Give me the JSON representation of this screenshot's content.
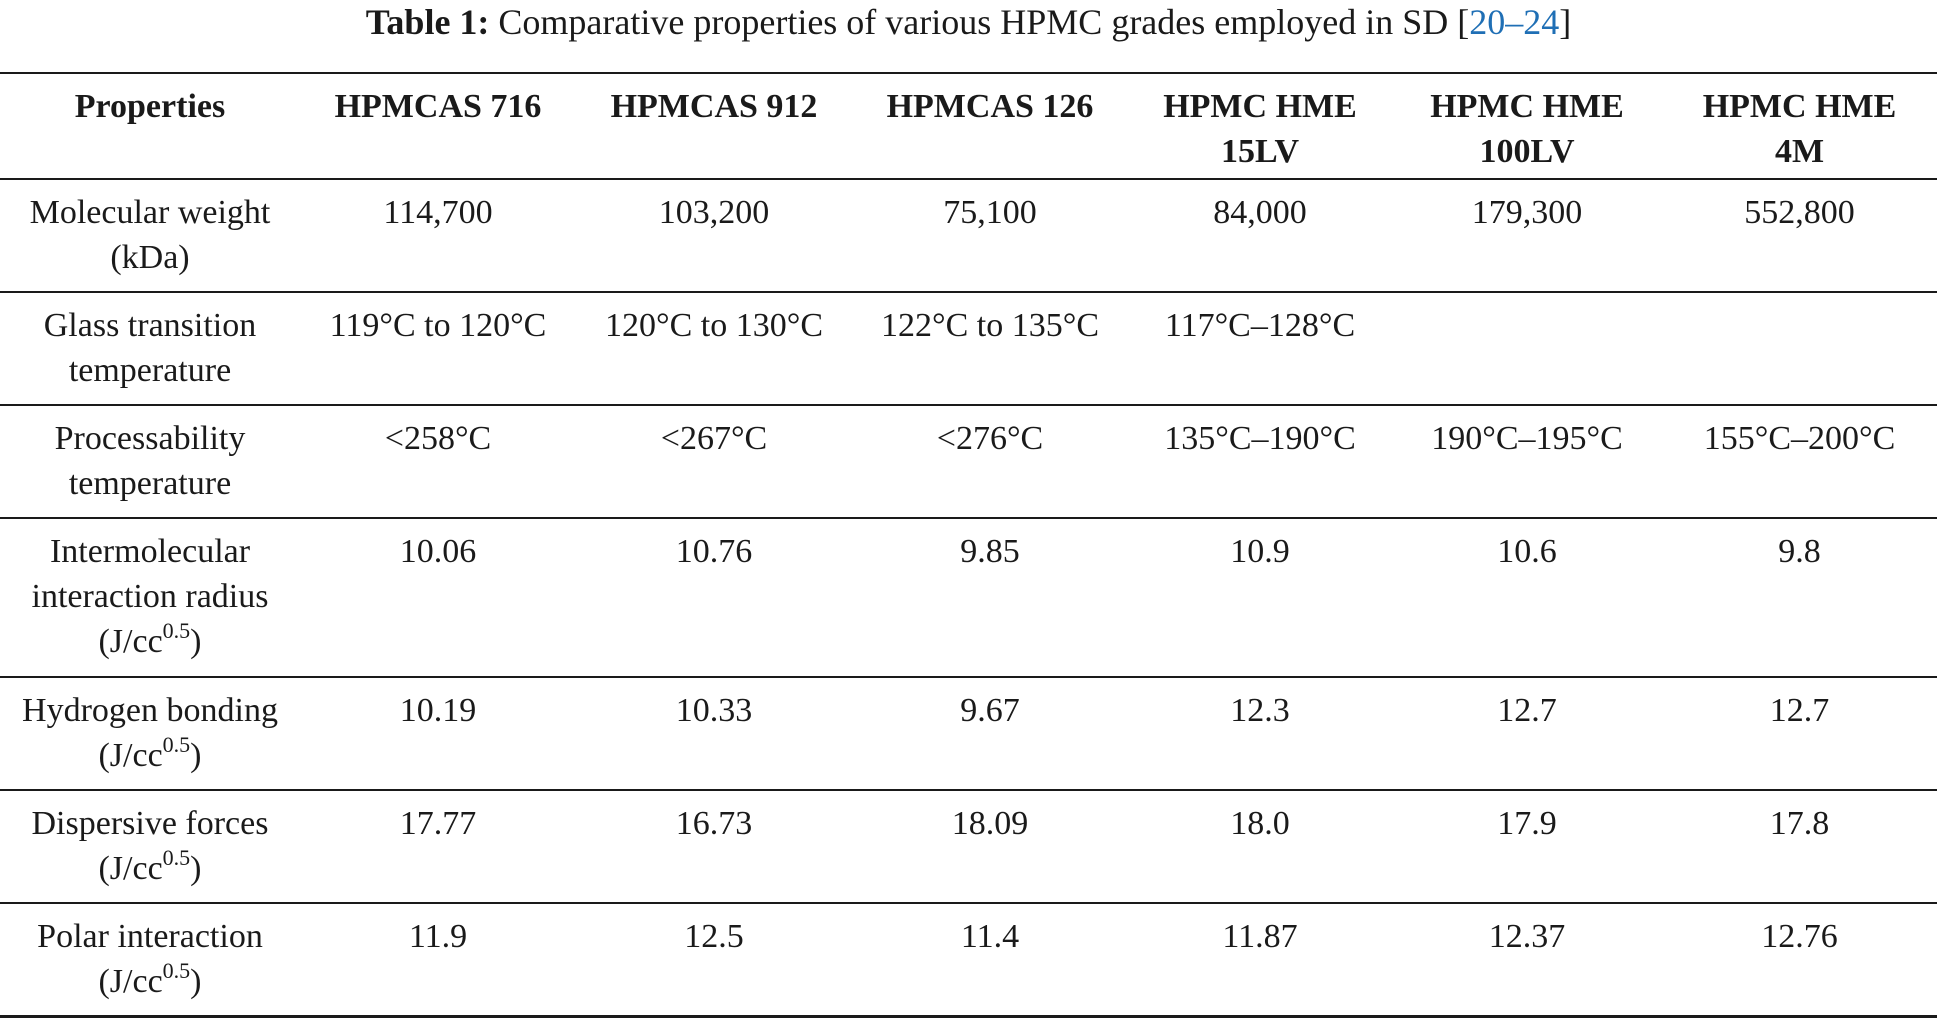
{
  "caption": {
    "label": "Table 1:",
    "text": "Comparative properties of various HPMC grades employed in SD",
    "cite_open": "[",
    "cite_a": "20",
    "cite_dash": "–",
    "cite_b": "24",
    "cite_close": "]"
  },
  "table": {
    "headers": [
      [
        "Properties"
      ],
      [
        "HPMCAS 716"
      ],
      [
        "HPMCAS 912"
      ],
      [
        "HPMCAS 126"
      ],
      [
        "HPMC HME",
        "15LV"
      ],
      [
        "HPMC HME",
        "100LV"
      ],
      [
        "HPMC HME",
        "4M"
      ]
    ],
    "unit_base": "(J/cc",
    "unit_exp": "0.5",
    "unit_close": ")",
    "rows": [
      {
        "label": [
          "Molecular weight",
          "(kDa)"
        ],
        "values": [
          "114,700",
          "103,200",
          "75,100",
          "84,000",
          "179,300",
          "552,800"
        ]
      },
      {
        "label": [
          "Glass transition",
          "temperature"
        ],
        "values": [
          "119°C to 120°C",
          "120°C to 130°C",
          "122°C to 135°C",
          "117°C–128°C",
          "",
          ""
        ]
      },
      {
        "label": [
          "Processability",
          "temperature"
        ],
        "values": [
          "<258°C",
          "<267°C",
          "<276°C",
          "135°C–190°C",
          "190°C–195°C",
          "155°C–200°C"
        ]
      },
      {
        "label": [
          "Intermolecular",
          "interaction radius"
        ],
        "values": [
          "10.06",
          "10.76",
          "9.85",
          "10.9",
          "10.6",
          "9.8"
        ]
      },
      {
        "label": [
          "Hydrogen bonding"
        ],
        "values": [
          "10.19",
          "10.33",
          "9.67",
          "12.3",
          "12.7",
          "12.7"
        ]
      },
      {
        "label": [
          "Dispersive forces"
        ],
        "values": [
          "17.77",
          "16.73",
          "18.09",
          "18.0",
          "17.9",
          "17.8"
        ]
      },
      {
        "label": [
          "Polar interaction"
        ],
        "values": [
          "11.9",
          "12.5",
          "11.4",
          "11.87",
          "12.37",
          "12.76"
        ]
      }
    ]
  }
}
